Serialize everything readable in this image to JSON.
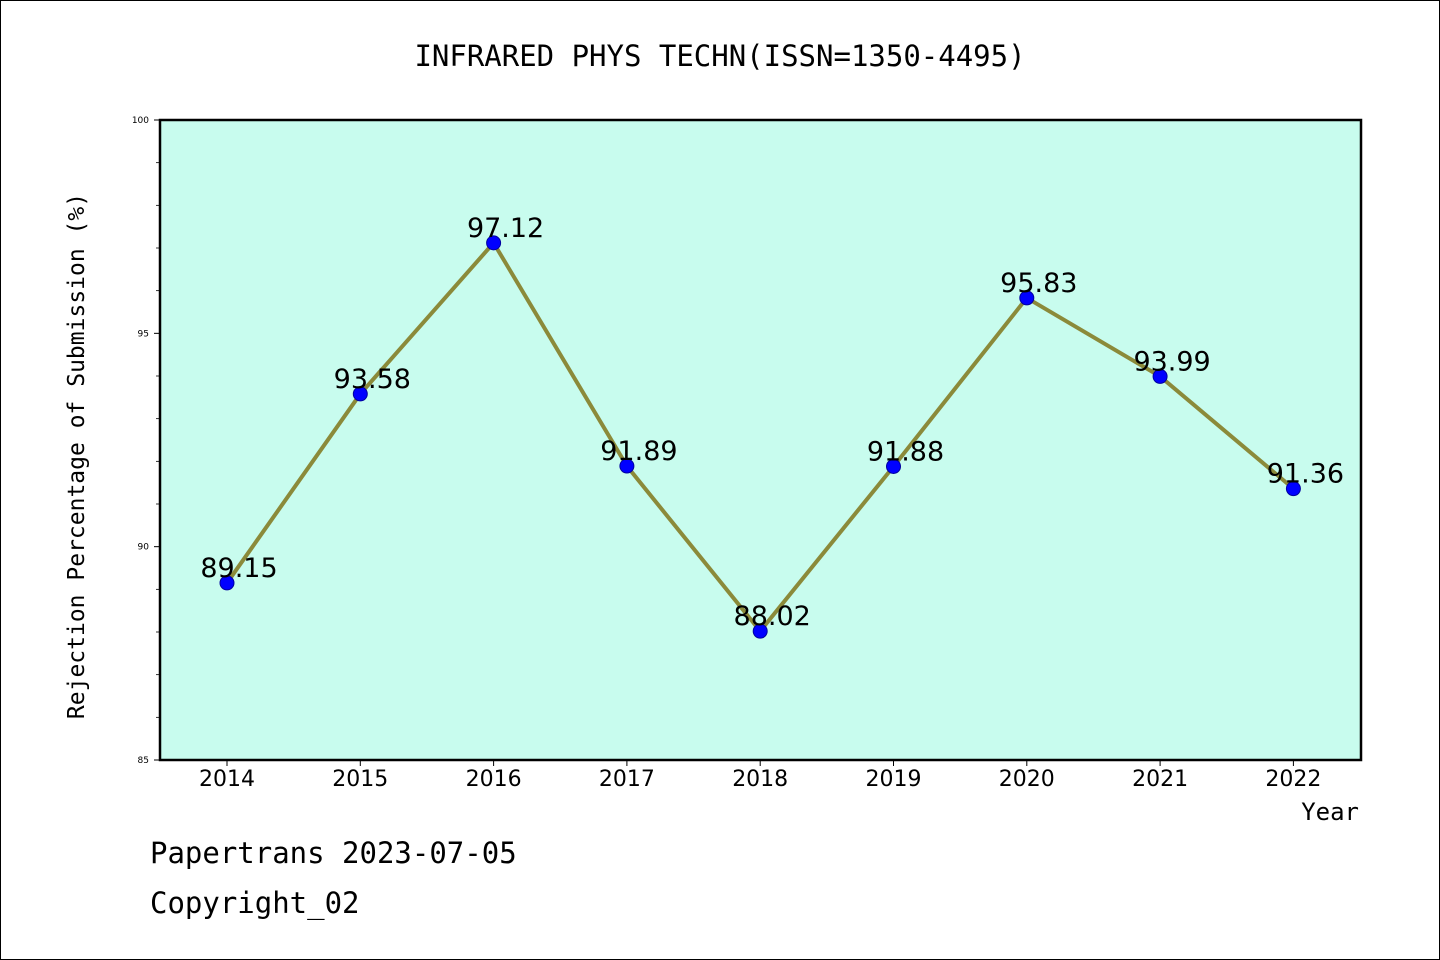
{
  "chart_data": {
    "type": "line",
    "title": "INFRARED PHYS TECHN(ISSN=1350-4495)",
    "xlabel": "Year",
    "ylabel": "Rejection Percentage of Submission (%)",
    "categories": [
      "2014",
      "2015",
      "2016",
      "2017",
      "2018",
      "2019",
      "2020",
      "2021",
      "2022"
    ],
    "values": [
      89.15,
      93.58,
      97.12,
      91.89,
      88.02,
      91.88,
      95.83,
      93.99,
      91.36
    ],
    "data_labels": [
      "89.15",
      "93.58",
      "97.12",
      "91.89",
      "88.02",
      "91.88",
      "95.83",
      "93.99",
      "91.36"
    ],
    "ylim": [
      85,
      100
    ],
    "yticks": [
      85,
      90,
      95,
      100
    ],
    "ytick_labels": [
      "85",
      "90",
      "95",
      "100"
    ],
    "grid": false,
    "colors": {
      "plot_background": "#c8fcee",
      "line": "#8b8a3a",
      "marker": "#0000ff"
    }
  },
  "footer": {
    "source": "Papertrans 2023-07-05",
    "copyright": "Copyright_02"
  }
}
